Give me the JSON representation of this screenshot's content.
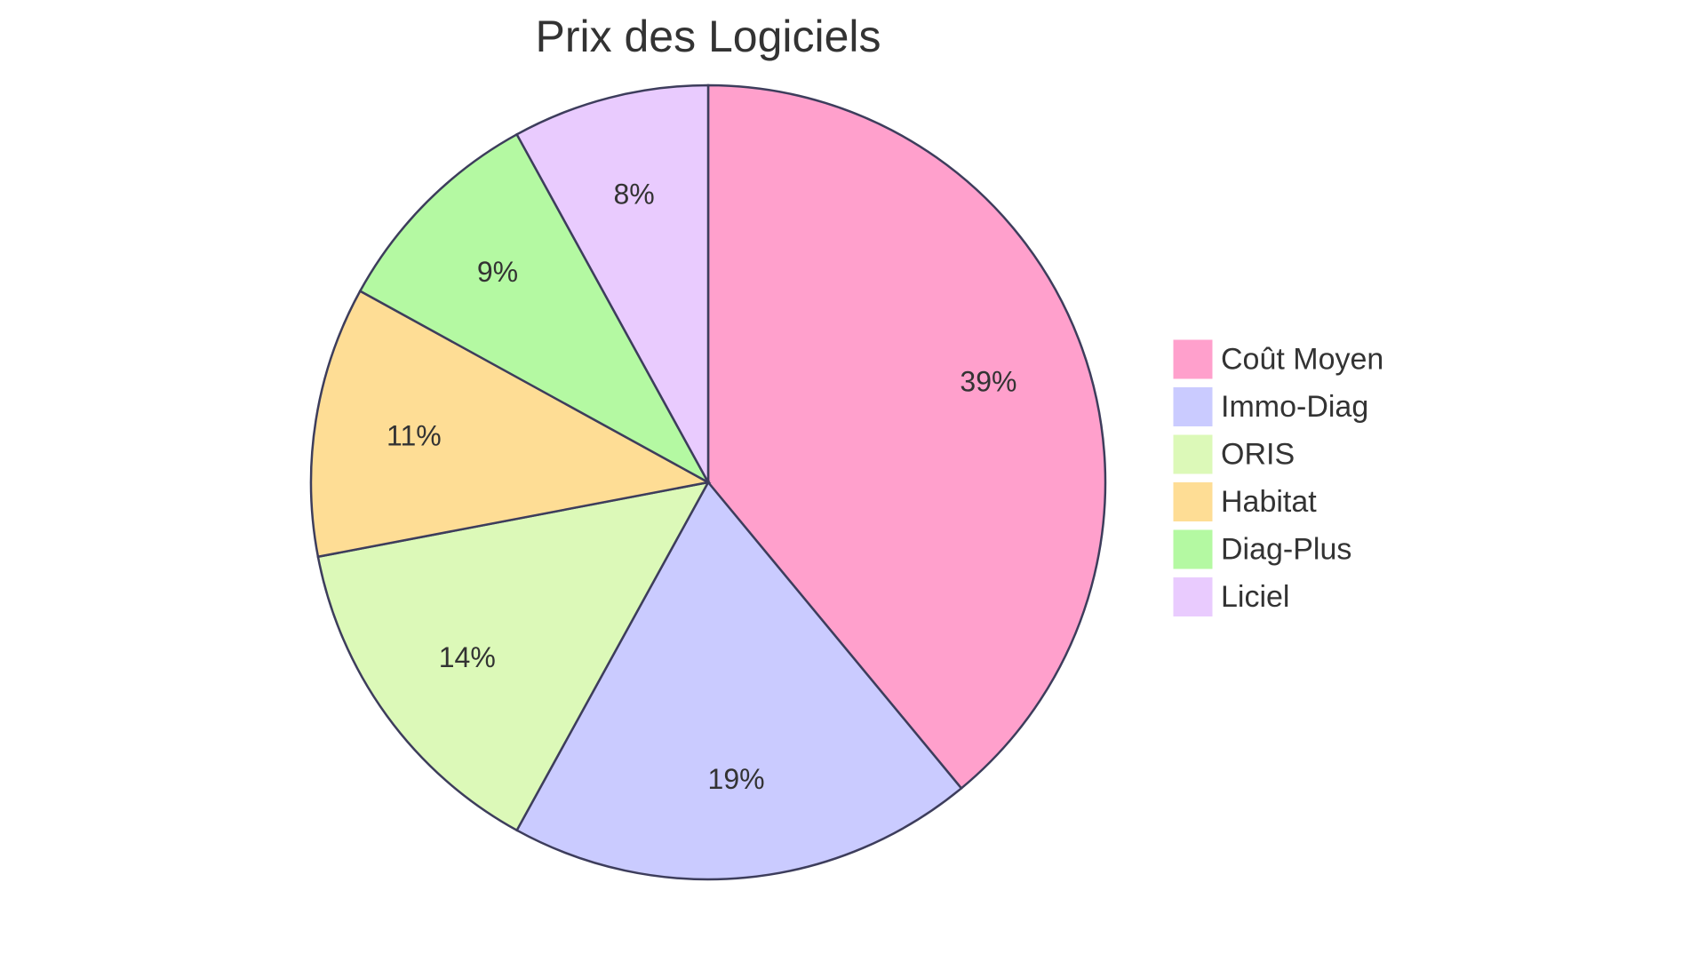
{
  "chart_data": {
    "type": "pie",
    "title": "Prix des Logiciels",
    "start_angle_deg": 0,
    "direction": "clockwise",
    "slices": [
      {
        "label": "Coût Moyen",
        "value": 39,
        "display": "39%",
        "color": "#ffa0cc"
      },
      {
        "label": "Immo-Diag",
        "value": 19,
        "display": "19%",
        "color": "#cacbff"
      },
      {
        "label": "ORIS",
        "value": 14,
        "display": "14%",
        "color": "#dcf9b8"
      },
      {
        "label": "Habitat",
        "value": 11,
        "display": "11%",
        "color": "#fedd95"
      },
      {
        "label": "Diag-Plus",
        "value": 9,
        "display": "9%",
        "color": "#b4f9a2"
      },
      {
        "label": "Liciel",
        "value": 8,
        "display": "8%",
        "color": "#e9cbfe"
      }
    ],
    "legend_position": "right"
  }
}
